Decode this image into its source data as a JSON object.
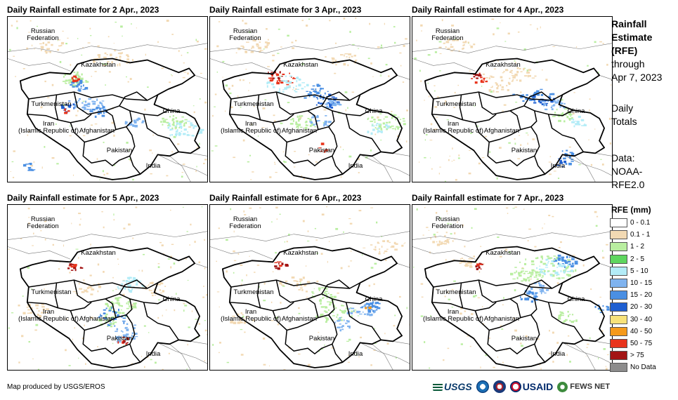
{
  "panels": [
    {
      "title": "Daily Rainfall estimate for 2 Apr., 2023"
    },
    {
      "title": "Daily Rainfall estimate for 3 Apr., 2023"
    },
    {
      "title": "Daily Rainfall estimate for 4 Apr., 2023"
    },
    {
      "title": "Daily Rainfall estimate for 5 Apr., 2023"
    },
    {
      "title": "Daily Rainfall estimate for 6 Apr., 2023"
    },
    {
      "title": "Daily Rainfall estimate for 7 Apr., 2023"
    }
  ],
  "map_labels": {
    "russia": "Russian\nFederation",
    "kazakhstan": "Kazakhstan",
    "turkmenistan": "Turkmenistan",
    "iran": "Iran\n(Islamic Republic of)",
    "afghanistan": "Afghanistan",
    "pakistan": "Pakistan",
    "india": "India",
    "china": "China"
  },
  "side": {
    "title_line1": "Rainfall",
    "title_line2": "Estimate",
    "title_line3": "(RFE)",
    "through_line1": "through",
    "through_line2": "Apr 7, 2023",
    "totals_line1": "Daily",
    "totals_line2": "Totals",
    "data_line1": "Data:",
    "data_line2": "NOAA-",
    "data_line3": "RFE2.0"
  },
  "legend": {
    "title": "RFE (mm)",
    "items": [
      {
        "label": "0 - 0.1",
        "color": "#ffffff"
      },
      {
        "label": "0.1 - 1",
        "color": "#f2d9b3"
      },
      {
        "label": "1 - 2",
        "color": "#b9eea0"
      },
      {
        "label": "2 - 5",
        "color": "#5ed65e"
      },
      {
        "label": "5 - 10",
        "color": "#b3ecf7"
      },
      {
        "label": "10 - 15",
        "color": "#7fb3ef"
      },
      {
        "label": "15 - 20",
        "color": "#4a8fe3"
      },
      {
        "label": "20 - 30",
        "color": "#1f5fd1"
      },
      {
        "label": "30 - 40",
        "color": "#f7e27a"
      },
      {
        "label": "40 - 50",
        "color": "#f59a1c"
      },
      {
        "label": "50 - 75",
        "color": "#e8341c"
      },
      {
        "label": "> 75",
        "color": "#a31515"
      },
      {
        "label": "No Data",
        "color": "#8c8c8c"
      }
    ]
  },
  "footer": {
    "credit": "Map produced by USGS/EROS",
    "logo_usgs": "USGS",
    "logo_usaid": "USAID",
    "logo_fews": "FEWS NET"
  }
}
